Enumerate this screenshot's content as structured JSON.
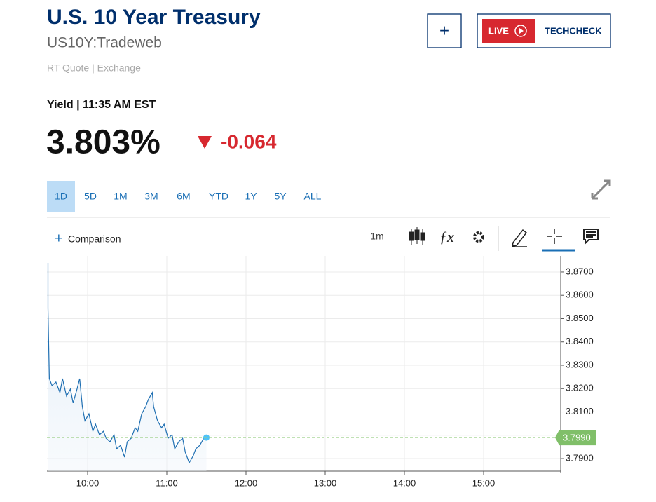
{
  "header": {
    "title": "U.S. 10 Year Treasury",
    "symbol": "US10Y:Tradeweb",
    "source": "RT Quote | Exchange"
  },
  "buttons": {
    "add": "+",
    "live": "LIVE",
    "show": "TECHCHECK"
  },
  "quote": {
    "label": "Yield | 11:35 AM EST",
    "price": "3.803%",
    "change": "-0.064"
  },
  "ranges": [
    "1D",
    "5D",
    "1M",
    "3M",
    "6M",
    "YTD",
    "1Y",
    "5Y",
    "ALL"
  ],
  "active_range": "1D",
  "toolbar": {
    "comparison": "Comparison",
    "interval": "1m"
  },
  "chart_data": {
    "type": "line",
    "x": [
      570,
      570,
      571,
      573,
      576,
      579,
      581,
      584,
      587,
      589,
      592,
      594,
      596,
      598,
      601,
      604,
      606,
      609,
      612,
      614,
      617,
      620,
      622,
      625,
      628,
      630,
      633,
      636,
      638,
      641,
      644,
      646,
      649,
      650,
      653,
      656,
      658,
      661,
      664,
      666,
      669,
      672,
      674,
      677,
      680,
      682,
      685,
      688,
      690
    ],
    "series": [
      {
        "name": "US10Y",
        "color": "#1f6fb2",
        "values": [
          3.8739,
          3.8544,
          3.8243,
          3.8213,
          3.8228,
          3.8183,
          3.8243,
          3.8168,
          3.8198,
          3.8138,
          3.8198,
          3.8243,
          3.8123,
          3.8062,
          3.8092,
          3.8017,
          3.8047,
          3.8002,
          3.8017,
          3.7987,
          3.7972,
          3.8002,
          3.7942,
          3.7957,
          3.7906,
          3.7972,
          3.7987,
          3.8032,
          3.8017,
          3.8092,
          3.8123,
          3.8153,
          3.8183,
          3.8123,
          3.8062,
          3.8032,
          3.8047,
          3.7987,
          3.8002,
          3.7942,
          3.7972,
          3.7987,
          3.7927,
          3.7882,
          3.7912,
          3.7942,
          3.7957,
          3.7987,
          3.799
        ]
      }
    ],
    "last": {
      "value": 3.799,
      "label": "3.7990"
    },
    "xlim": [
      570,
      960
    ],
    "xticks": [
      {
        "value": 600,
        "label": "10:00"
      },
      {
        "value": 660,
        "label": "11:00"
      },
      {
        "value": 720,
        "label": "12:00"
      },
      {
        "value": 780,
        "label": "13:00"
      },
      {
        "value": 840,
        "label": "14:00"
      },
      {
        "value": 900,
        "label": "15:00"
      }
    ],
    "ylim": [
      3.7846,
      3.8769
    ],
    "yticks": [
      {
        "value": 3.79,
        "label": "3.7900"
      },
      {
        "value": 3.8,
        "label": "3.8000"
      },
      {
        "value": 3.81,
        "label": "3.8100"
      },
      {
        "value": 3.82,
        "label": "3.8200"
      },
      {
        "value": 3.83,
        "label": "3.8300"
      },
      {
        "value": 3.84,
        "label": "3.8400"
      },
      {
        "value": 3.85,
        "label": "3.8500"
      },
      {
        "value": 3.86,
        "label": "3.8600"
      },
      {
        "value": 3.87,
        "label": "3.8700"
      }
    ],
    "grid": true
  }
}
